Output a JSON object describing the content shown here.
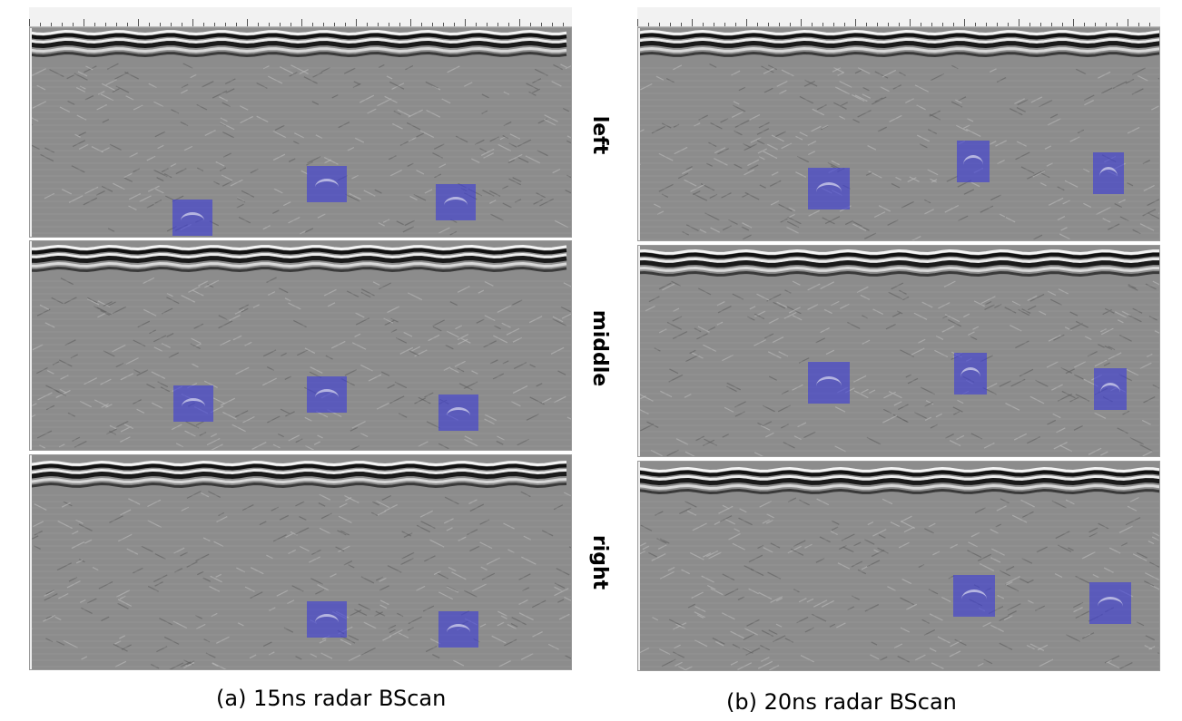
{
  "figure": {
    "caption_a": "(a) 15ns radar BScan",
    "caption_b": "(b) 20ns radar BScan",
    "row_labels": [
      "left",
      "middle",
      "right"
    ]
  },
  "colors": {
    "highlight": "#3c3cd7",
    "background": "#8a8a8a",
    "frame": "#9a9a9a"
  },
  "panels_a": [
    {
      "name": "scan-a-left",
      "boxes": 3
    },
    {
      "name": "scan-a-middle",
      "boxes": 3
    },
    {
      "name": "scan-a-right",
      "boxes": 2
    }
  ],
  "panels_b": [
    {
      "name": "scan-b-left",
      "boxes": 3
    },
    {
      "name": "scan-b-middle",
      "boxes": 3
    },
    {
      "name": "scan-b-right",
      "boxes": 2
    }
  ]
}
